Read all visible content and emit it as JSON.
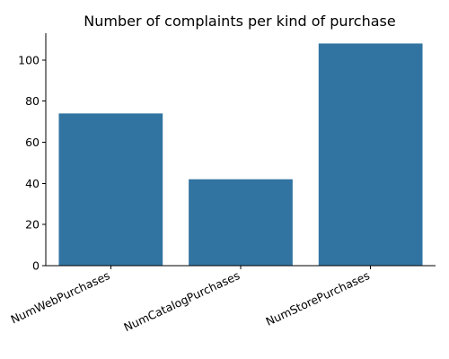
{
  "chart_data": {
    "type": "bar",
    "title": "Number of complaints per kind of purchase",
    "xlabel": "",
    "ylabel": "",
    "categories": [
      "NumWebPurchases",
      "NumCatalogPurchases",
      "NumStorePurchases"
    ],
    "values": [
      74,
      42,
      108
    ],
    "ylim": [
      0,
      113
    ],
    "yticks": [
      0,
      20,
      40,
      60,
      80,
      100
    ],
    "xtick_rotation_deg": 25,
    "grid": false,
    "bar_color": "#3274a1"
  }
}
